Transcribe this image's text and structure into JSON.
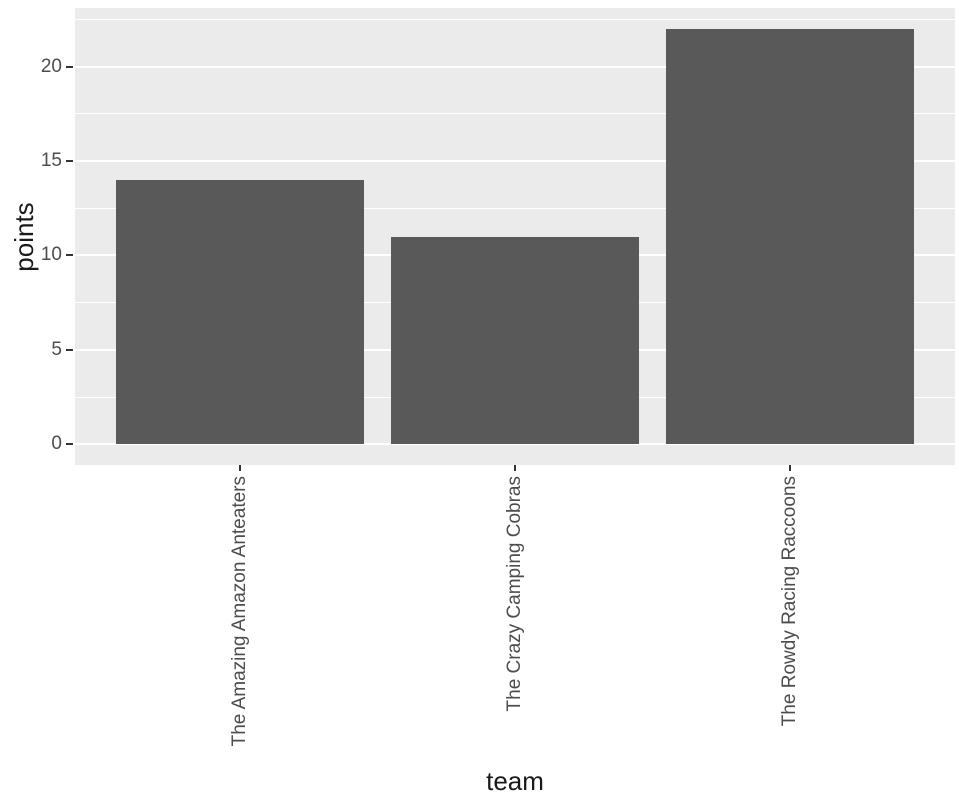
{
  "chart_data": {
    "type": "bar",
    "title": "",
    "categories": [
      "The Amazing Amazon Anteaters",
      "The Crazy Camping Cobras",
      "The Rowdy Racing Raccoons"
    ],
    "values": [
      14,
      11,
      22
    ],
    "xlabel": "team",
    "ylabel": "points",
    "ylim": [
      0,
      22
    ],
    "expansion_mult": 0.05,
    "y_major_ticks": [
      0,
      5,
      10,
      15,
      20
    ],
    "y_major_tick_labels": [
      "0",
      "5",
      "10",
      "15",
      "20"
    ],
    "y_minor_ticks": [
      2.5,
      7.5,
      12.5,
      17.5,
      22.5
    ],
    "bar_width_ratio": 0.9,
    "grid": true,
    "legend_position": "none",
    "colors": {
      "panel_background": "#EBEBEB",
      "gridline": "#FFFFFF",
      "bar_fill": "#595959",
      "tick_label": "#4D4D4D",
      "axis_title": "#1A1A1A",
      "tick_mark": "#333333",
      "figure_background": "#FFFFFF"
    }
  }
}
